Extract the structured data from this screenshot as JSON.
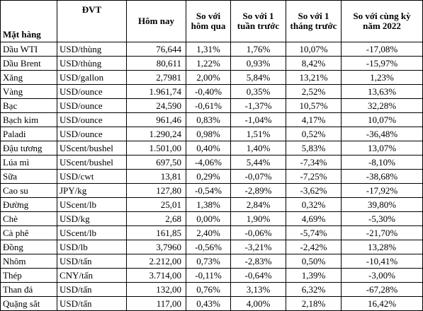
{
  "headers": {
    "item": "Mặt hàng",
    "unit": "ĐVT",
    "today": "Hôm nay",
    "vs_yesterday": "So với hôm qua",
    "vs_week": "So với 1 tuần trước",
    "vs_month": "So với 1 tháng trước",
    "vs_year": "So với cùng kỳ năm 2022"
  },
  "rows": [
    {
      "item": "Dầu WTI",
      "unit": "USD/thùng",
      "today": "76,644",
      "day": "1,31%",
      "week": "1,76%",
      "month": "10,07%",
      "year": "-17,08%"
    },
    {
      "item": "Dầu Brent",
      "unit": "USD/thùng",
      "today": "80,611",
      "day": "1,22%",
      "week": "0,93%",
      "month": "8,42%",
      "year": "-15,97%"
    },
    {
      "item": "Xăng",
      "unit": "USD/gallon",
      "today": "2,7981",
      "day": "2,00%",
      "week": "5,84%",
      "month": "13,21%",
      "year": "1,23%"
    },
    {
      "item": "Vàng",
      "unit": "USD/ounce",
      "today": "1.961,74",
      "day": "-0,40%",
      "week": "0,35%",
      "month": "2,52%",
      "year": "13,63%"
    },
    {
      "item": "Bạc",
      "unit": "USD/ounce",
      "today": "24,590",
      "day": "-0,61%",
      "week": "-1,37%",
      "month": "10,57%",
      "year": "32,28%"
    },
    {
      "item": "Bạch kim",
      "unit": "USD/ounce",
      "today": "961,46",
      "day": "0,83%",
      "week": "-1,04%",
      "month": "4,17%",
      "year": "10,07%"
    },
    {
      "item": "Paladi",
      "unit": "USD/ounce",
      "today": "1.290,24",
      "day": "0,98%",
      "week": "1,51%",
      "month": "0,52%",
      "year": "-36,48%"
    },
    {
      "item": "Đậu tương",
      "unit": "UScent/bushel",
      "today": "1.501,00",
      "day": "0,40%",
      "week": "1,40%",
      "month": "5,83%",
      "year": "13,07%"
    },
    {
      "item": "Lúa mì",
      "unit": "UScent/bushel",
      "today": "697,50",
      "day": "-4,06%",
      "week": "5,44%",
      "month": "-7,34%",
      "year": "-8,10%"
    },
    {
      "item": "Sữa",
      "unit": "USD/cwt",
      "today": "13,81",
      "day": "0,29%",
      "week": "-0,07%",
      "month": "-7,25%",
      "year": "-38,68%"
    },
    {
      "item": "Cao su",
      "unit": "JPY/kg",
      "today": "127,80",
      "day": "-0,54%",
      "week": "-2,89%",
      "month": "-3,62%",
      "year": "-17,92%"
    },
    {
      "item": "Đường",
      "unit": "UScent/lb",
      "today": "25,01",
      "day": "1,38%",
      "week": "2,84%",
      "month": "0,32%",
      "year": "39,80%"
    },
    {
      "item": "Chè",
      "unit": "USD/kg",
      "today": "2,68",
      "day": "0,00%",
      "week": "1,90%",
      "month": "4,69%",
      "year": "-5,30%"
    },
    {
      "item": "Cà phê",
      "unit": "UScent/lb",
      "today": "161,85",
      "day": "2,40%",
      "week": "-0,06%",
      "month": "-5,74%",
      "year": "-21,70%"
    },
    {
      "item": "Đồng",
      "unit": "USD/lb",
      "today": "3,7960",
      "day": "-0,56%",
      "week": "-3,21%",
      "month": "-2,42%",
      "year": "13,28%"
    },
    {
      "item": "Nhôm",
      "unit": "USD/tấn",
      "today": "2.212,00",
      "day": "0,73%",
      "week": "-2,83%",
      "month": "0,50%",
      "year": "-10,41%"
    },
    {
      "item": "Thép",
      "unit": "CNY/tấn",
      "today": "3.714,00",
      "day": "-0,11%",
      "week": "-0,64%",
      "month": "1,39%",
      "year": "-3,00%"
    },
    {
      "item": "Than đá",
      "unit": "USD/tấn",
      "today": "132,00",
      "day": "0,76%",
      "week": "3,13%",
      "month": "6,32%",
      "year": "-67,28%"
    },
    {
      "item": "Quặng sắt",
      "unit": "USD/tấn",
      "today": "117,00",
      "day": "0,43%",
      "week": "4,00%",
      "month": "2,18%",
      "year": "16,42%"
    }
  ]
}
